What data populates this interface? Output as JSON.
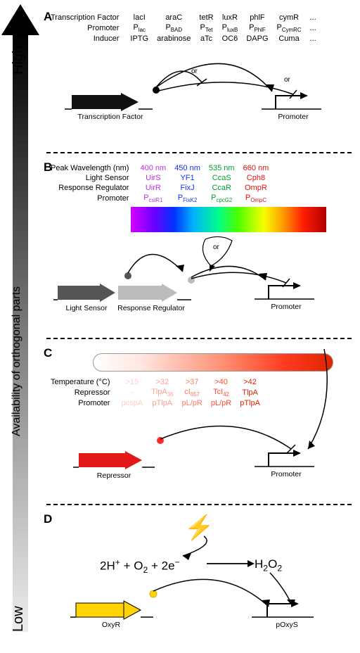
{
  "axis": {
    "high": "High",
    "low": "Low",
    "label": "Availability of orthogonal parts"
  },
  "panelA": {
    "label": "A",
    "rows": [
      {
        "hd": "Transcription Factor",
        "c": [
          "lacI",
          "araC",
          "tetR",
          "luxR",
          "phlF",
          "cymR",
          "..."
        ]
      },
      {
        "hd": "Promoter",
        "c": [
          "P<sub>lac</sub>",
          "P<sub>BAD</sub>",
          "P<sub>Tet</sub>",
          "P<sub>luxB</sub>",
          "P<sub>PhlF</sub>",
          "P<sub>CymRC</sub>",
          "..."
        ]
      },
      {
        "hd": "Inducer",
        "c": [
          "IPTG",
          "arabinose",
          "aTc",
          "OC6",
          "DAPG",
          "Cuma",
          "..."
        ]
      }
    ],
    "gene": "Transcription Factor",
    "prom": "Promoter",
    "geneColor": "#111111"
  },
  "panelB": {
    "label": "B",
    "colors": [
      "#c030e8",
      "#1030ff",
      "#00a030",
      "#e01010"
    ],
    "rows": [
      {
        "hd": "Peak Wavelength (nm)",
        "c": [
          "400 nm",
          "450 nm",
          "535 nm",
          "660 nm"
        ]
      },
      {
        "hd": "Light Sensor",
        "c": [
          "UirS",
          "YF1",
          "CcaS",
          "Cph8"
        ]
      },
      {
        "hd": "Response Regulator",
        "c": [
          "UirR",
          "FixJ",
          "CcaR",
          "OmpR"
        ]
      },
      {
        "hd": "Promoter",
        "c": [
          "P<sub>csiR1</sub>",
          "P<sub>FixK2</sub>",
          "P<sub>cpcG2</sub>",
          "P<sub>OmpC</sub>"
        ]
      }
    ],
    "genes": [
      "Light Sensor",
      "Response Regulator"
    ],
    "prom": "Promoter",
    "geneColors": [
      "#555555",
      "#bcbcbc"
    ]
  },
  "panelC": {
    "label": "C",
    "colors": [
      "#ffcfc7",
      "#ff9f8f",
      "#ff7a63",
      "#ff4d30",
      "#e02400"
    ],
    "rows": [
      {
        "hd": "Temperature (°C)",
        "c": [
          ">15",
          ">32",
          ">37",
          ">40",
          ">42"
        ]
      },
      {
        "hd": "Repressor",
        "c": [
          "-",
          "TlpA<sub>36</sub>",
          "cI<sub>857</sub>",
          "TcI<sub>42</sub>",
          "TlpA"
        ]
      },
      {
        "hd": "Promoter",
        "c": [
          "pcspA",
          "pTlpA",
          "pL/pR",
          "pL/pR",
          "pTlpA"
        ]
      }
    ],
    "gene": "Repressor",
    "prom": "Promoter",
    "geneColor": "#e31818"
  },
  "panelD": {
    "label": "D",
    "eqLeft": "2H<sup>+</sup> + O<sub>2</sub> + 2e<sup>−</sup>",
    "eqRight": "H<sub>2</sub>O<sub>2</sub>",
    "gene": "OxyR",
    "prom": "pOxyS",
    "geneColor": "#ffd400",
    "dotColor": "#ffd400"
  }
}
